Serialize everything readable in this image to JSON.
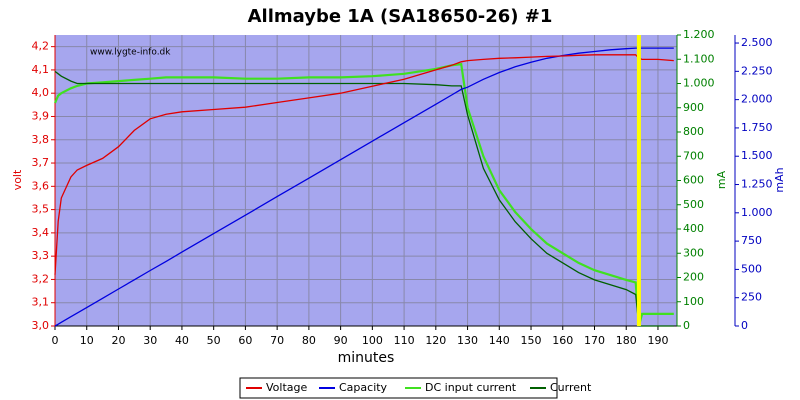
{
  "chart_data": {
    "type": "line",
    "title": "Allmaybe 1A (SA18650-26) #1",
    "watermark": "www.lygte-info.dk",
    "xlabel": "minutes",
    "ylabel": "volt",
    "y2label": "mA",
    "y3label": "mAh",
    "grid": true,
    "legend": "bottom",
    "xlim": [
      0,
      196
    ],
    "xticks": [
      0,
      10,
      20,
      30,
      40,
      50,
      60,
      70,
      80,
      90,
      100,
      110,
      120,
      130,
      140,
      150,
      160,
      170,
      180,
      190
    ],
    "ylim": [
      3.0,
      4.25
    ],
    "yticks": [
      {
        "value": 3.0,
        "label": "3,0"
      },
      {
        "value": 3.1,
        "label": "3,1"
      },
      {
        "value": 3.2,
        "label": "3,2"
      },
      {
        "value": 3.3,
        "label": "3,3"
      },
      {
        "value": 3.4,
        "label": "3,4"
      },
      {
        "value": 3.5,
        "label": "3,5"
      },
      {
        "value": 3.6,
        "label": "3,6"
      },
      {
        "value": 3.7,
        "label": "3,7"
      },
      {
        "value": 3.8,
        "label": "3,8"
      },
      {
        "value": 3.9,
        "label": "3,9"
      },
      {
        "value": 4.0,
        "label": "4,0"
      },
      {
        "value": 4.1,
        "label": "4,1"
      },
      {
        "value": 4.2,
        "label": "4,2"
      }
    ],
    "y2lim": [
      0,
      1200
    ],
    "y2ticks": [
      0,
      100,
      200,
      300,
      400,
      500,
      600,
      700,
      800,
      900,
      {
        "value": 1000,
        "label": "1.000"
      },
      {
        "value": 1100,
        "label": "1.100"
      },
      {
        "value": 1200,
        "label": "1.200"
      }
    ],
    "y3lim": [
      0,
      2571
    ],
    "y3ticks": [
      0,
      250,
      500,
      750,
      {
        "value": 1000,
        "label": "1.000"
      },
      {
        "value": 1250,
        "label": "1.250"
      },
      {
        "value": 1500,
        "label": "1.500"
      },
      {
        "value": 1750,
        "label": "1.750"
      },
      {
        "value": 2000,
        "label": "2.000"
      },
      {
        "value": 2250,
        "label": "2.250"
      },
      {
        "value": 2500,
        "label": "2.500"
      }
    ],
    "x": [
      0,
      1,
      2,
      5,
      7,
      10,
      15,
      20,
      25,
      30,
      35,
      40,
      50,
      60,
      70,
      80,
      90,
      100,
      110,
      120,
      125,
      128,
      130,
      135,
      140,
      145,
      150,
      155,
      160,
      165,
      170,
      175,
      180,
      183,
      184,
      185,
      190,
      195
    ],
    "series": [
      {
        "name": "Voltage",
        "color": "#e00000",
        "axis": "y",
        "values": [
          3.22,
          3.45,
          3.55,
          3.64,
          3.67,
          3.69,
          3.72,
          3.77,
          3.84,
          3.89,
          3.91,
          3.92,
          3.93,
          3.94,
          3.96,
          3.98,
          4.0,
          4.03,
          4.06,
          4.1,
          4.12,
          4.135,
          4.14,
          4.145,
          4.15,
          4.152,
          4.155,
          4.158,
          4.16,
          4.163,
          4.165,
          4.165,
          4.165,
          4.165,
          4.15,
          4.145,
          4.145,
          4.14
        ]
      },
      {
        "name": "Capacity",
        "color": "#0000e0",
        "axis": "y3",
        "values": [
          0,
          16,
          33,
          82,
          114,
          163,
          245,
          327,
          408,
          490,
          571,
          653,
          816,
          979,
          1143,
          1306,
          1469,
          1633,
          1796,
          1959,
          2041,
          2090,
          2110,
          2180,
          2240,
          2290,
          2330,
          2365,
          2390,
          2410,
          2425,
          2440,
          2450,
          2455,
          2455,
          2455,
          2455,
          2455
        ]
      },
      {
        "name": "DC input current",
        "color": "#40e020",
        "axis": "y2",
        "values": [
          920,
          950,
          960,
          980,
          990,
          1000,
          1005,
          1010,
          1015,
          1020,
          1025,
          1025,
          1025,
          1020,
          1020,
          1025,
          1025,
          1030,
          1040,
          1060,
          1075,
          1080,
          900,
          700,
          560,
          470,
          400,
          340,
          300,
          260,
          230,
          210,
          190,
          180,
          0,
          50,
          50,
          50
        ]
      },
      {
        "name": "Current",
        "color": "#006000",
        "axis": "y2",
        "values": [
          1050,
          1040,
          1030,
          1010,
          1000,
          1000,
          1000,
          1000,
          1000,
          1000,
          1000,
          1000,
          1000,
          1000,
          1000,
          1000,
          1000,
          1000,
          1000,
          995,
          990,
          990,
          870,
          650,
          520,
          430,
          360,
          300,
          260,
          220,
          190,
          170,
          150,
          130,
          0,
          0,
          0,
          0
        ]
      }
    ]
  }
}
